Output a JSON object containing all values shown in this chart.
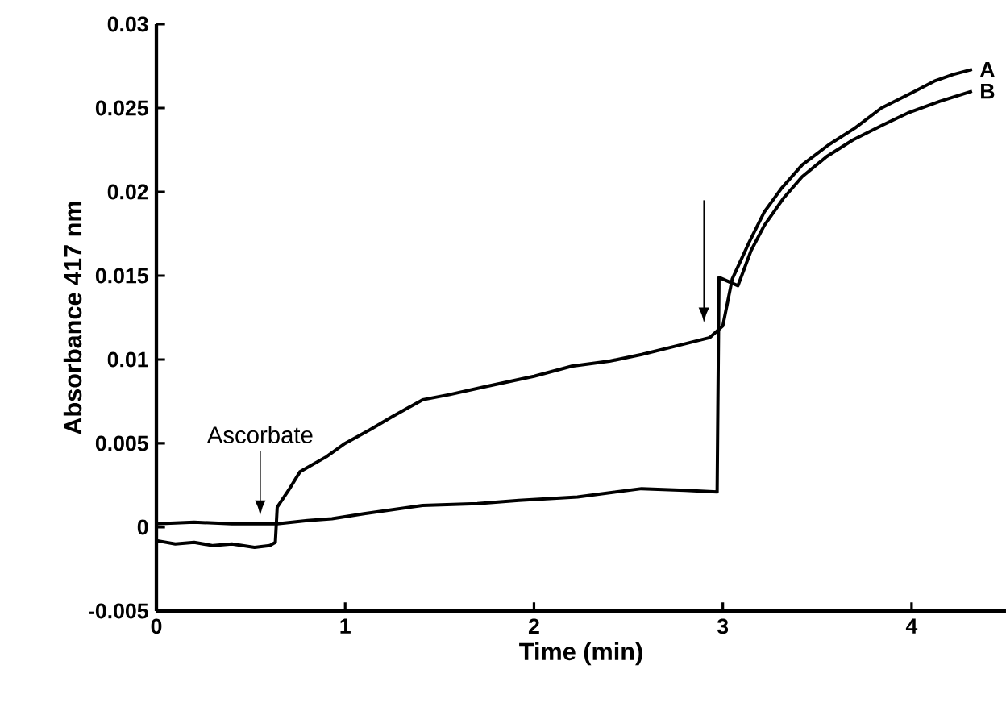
{
  "chart_data": {
    "type": "line",
    "xlabel": "Time (min)",
    "ylabel": "Absorbance 417 nm",
    "xlim": [
      0,
      4.5
    ],
    "ylim": [
      -0.005,
      0.03
    ],
    "xticks": [
      0,
      1,
      2,
      3,
      4
    ],
    "yticks": [
      -0.005,
      0,
      0.005,
      0.01,
      0.015,
      0.02,
      0.025,
      0.03
    ],
    "grid": false,
    "marker": "none",
    "line_style": "solid",
    "annotations": [
      {
        "text": "Ascorbate",
        "x": 0.55,
        "y": 0.0007
      }
    ],
    "series": [
      {
        "name": "A",
        "color": "#000000",
        "x": [
          0,
          0.1,
          0.2,
          0.3,
          0.4,
          0.52,
          0.6,
          0.63,
          0.64,
          0.7,
          0.76,
          0.9,
          1.0,
          1.13,
          1.25,
          1.41,
          1.55,
          1.75,
          2.0,
          2.2,
          2.4,
          2.57,
          2.75,
          2.93,
          2.97,
          3.0,
          3.05,
          3.14,
          3.22,
          3.31,
          3.42,
          3.56,
          3.7,
          3.84,
          4.0,
          4.12,
          4.22,
          4.32
        ],
        "values": [
          -0.0008,
          -0.001,
          -0.0009,
          -0.0011,
          -0.001,
          -0.0012,
          -0.0011,
          -0.0009,
          0.0012,
          0.0022,
          0.0033,
          0.0042,
          0.005,
          0.0058,
          0.0066,
          0.0076,
          0.0079,
          0.0084,
          0.009,
          0.0096,
          0.0099,
          0.0103,
          0.0108,
          0.0113,
          0.0117,
          0.012,
          0.0148,
          0.017,
          0.0188,
          0.0202,
          0.0216,
          0.0228,
          0.0238,
          0.025,
          0.0259,
          0.0266,
          0.027,
          0.0273
        ]
      },
      {
        "name": "B",
        "color": "#000000",
        "x": [
          0,
          0.2,
          0.4,
          0.64,
          0.8,
          0.93,
          1.1,
          1.41,
          1.7,
          1.92,
          2.23,
          2.57,
          2.8,
          2.97,
          2.98,
          3.08,
          3.15,
          3.22,
          3.32,
          3.42,
          3.55,
          3.69,
          3.85,
          3.98,
          4.15,
          4.32
        ],
        "values": [
          0.0002,
          0.0003,
          0.0002,
          0.0002,
          0.0004,
          0.0005,
          0.0008,
          0.0013,
          0.0014,
          0.0016,
          0.0018,
          0.0023,
          0.0022,
          0.0021,
          0.0149,
          0.0144,
          0.0165,
          0.018,
          0.0196,
          0.0209,
          0.0221,
          0.0231,
          0.024,
          0.0247,
          0.0254,
          0.026
        ]
      }
    ]
  }
}
